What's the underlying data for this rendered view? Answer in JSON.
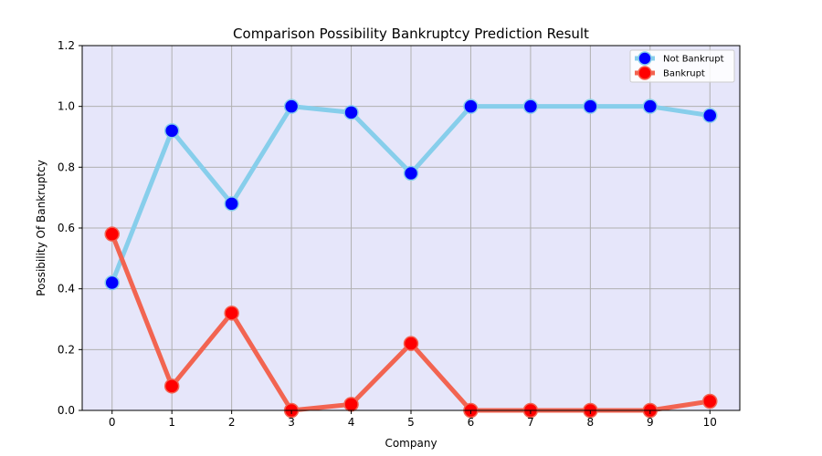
{
  "chart_data": {
    "type": "line",
    "title": "Comparison Possibility Bankruptcy Prediction Result",
    "xlabel": "Company",
    "ylabel": "Possibility Of Bankruptcy",
    "x": [
      0,
      1,
      2,
      3,
      4,
      5,
      6,
      7,
      8,
      9,
      10
    ],
    "ylim": [
      0,
      1.2
    ],
    "yticks": [
      0.0,
      0.2,
      0.4,
      0.6,
      0.8,
      1.0,
      1.2
    ],
    "ytick_labels": [
      "0.0",
      "0.2",
      "0.4",
      "0.6",
      "0.8",
      "1.0",
      "1.2"
    ],
    "grid": true,
    "legend_position": "top-right",
    "background_color": "#e6e6fa",
    "series": [
      {
        "name": "Not Bankrupt",
        "values": [
          0.42,
          0.92,
          0.68,
          1.0,
          0.98,
          0.78,
          1.0,
          1.0,
          1.0,
          1.0,
          0.97
        ],
        "line_color": "#87ceeb",
        "marker_color": "#0000ff"
      },
      {
        "name": "Bankrupt",
        "values": [
          0.58,
          0.08,
          0.32,
          0.0,
          0.02,
          0.22,
          0.0,
          0.0,
          0.0,
          0.0,
          0.03
        ],
        "line_color": "#f26451",
        "marker_color": "#ff0000"
      }
    ]
  }
}
